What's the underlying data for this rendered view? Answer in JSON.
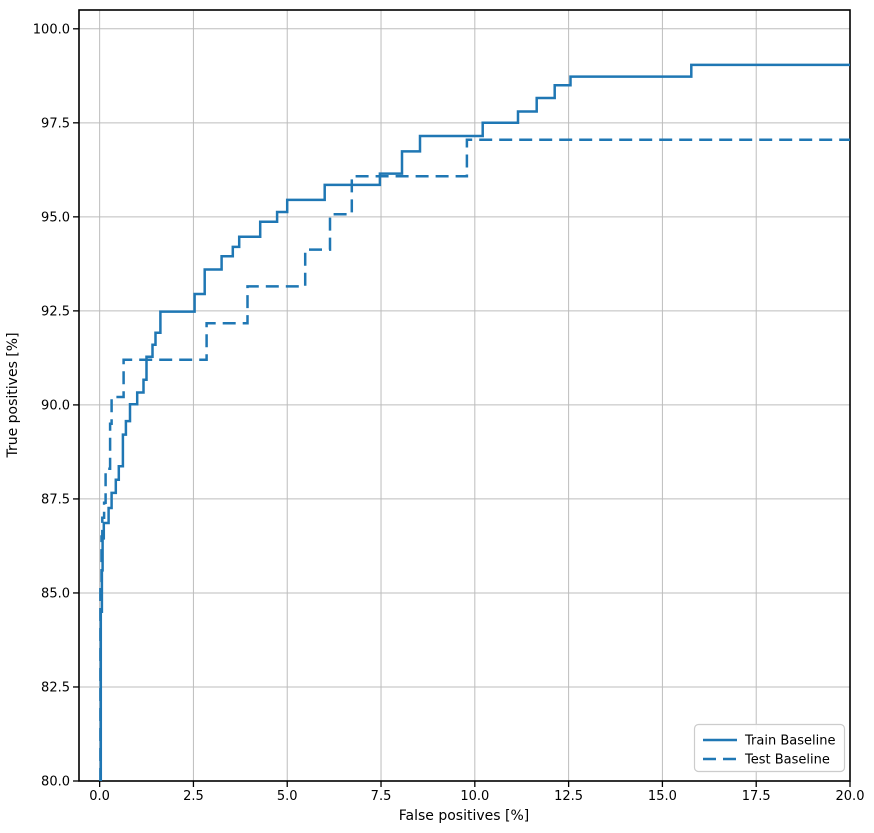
{
  "chart_data": {
    "type": "line",
    "title": "",
    "xlabel": "False positives [%]",
    "ylabel": "True positives [%]",
    "xlim": [
      -0.55,
      20.0
    ],
    "ylim": [
      80.0,
      100.5
    ],
    "xticks": [
      0.0,
      2.5,
      5.0,
      7.5,
      10.0,
      12.5,
      15.0,
      17.5,
      20.0
    ],
    "xtick_labels": [
      "0.0",
      "2.5",
      "5.0",
      "7.5",
      "10.0",
      "12.5",
      "15.0",
      "17.5",
      "20.0"
    ],
    "yticks": [
      80.0,
      82.5,
      85.0,
      87.5,
      90.0,
      92.5,
      95.0,
      97.5,
      100.0
    ],
    "ytick_labels": [
      "80.0",
      "82.5",
      "85.0",
      "87.5",
      "90.0",
      "92.5",
      "95.0",
      "97.5",
      "100.0"
    ],
    "grid": true,
    "grid_color": "#bdbdbd",
    "line_color": "#1f77b4",
    "legend_position": "lower right",
    "legend_border_color": "#cccccc",
    "series": [
      {
        "name": "Train Baseline",
        "key": "train-baseline",
        "style": "solid",
        "points": [
          [
            0.03,
            80.0
          ],
          [
            0.03,
            84.5
          ],
          [
            0.06,
            84.5
          ],
          [
            0.06,
            85.6
          ],
          [
            0.08,
            85.6
          ],
          [
            0.08,
            86.45
          ],
          [
            0.11,
            86.45
          ],
          [
            0.11,
            86.86
          ],
          [
            0.24,
            86.86
          ],
          [
            0.24,
            87.26
          ],
          [
            0.32,
            87.26
          ],
          [
            0.32,
            87.66
          ],
          [
            0.43,
            87.66
          ],
          [
            0.43,
            88.01
          ],
          [
            0.51,
            88.01
          ],
          [
            0.51,
            88.37
          ],
          [
            0.62,
            88.37
          ],
          [
            0.62,
            89.21
          ],
          [
            0.7,
            89.21
          ],
          [
            0.7,
            89.57
          ],
          [
            0.81,
            89.57
          ],
          [
            0.81,
            90.02
          ],
          [
            1.0,
            90.02
          ],
          [
            1.0,
            90.33
          ],
          [
            1.17,
            90.33
          ],
          [
            1.17,
            90.67
          ],
          [
            1.25,
            90.67
          ],
          [
            1.25,
            91.28
          ],
          [
            1.41,
            91.28
          ],
          [
            1.41,
            91.6
          ],
          [
            1.49,
            91.6
          ],
          [
            1.49,
            91.92
          ],
          [
            1.62,
            91.92
          ],
          [
            1.62,
            92.48
          ],
          [
            2.53,
            92.48
          ],
          [
            2.53,
            92.95
          ],
          [
            2.8,
            92.95
          ],
          [
            2.8,
            93.6
          ],
          [
            3.25,
            93.6
          ],
          [
            3.25,
            93.95
          ],
          [
            3.55,
            93.95
          ],
          [
            3.55,
            94.2
          ],
          [
            3.72,
            94.2
          ],
          [
            3.72,
            94.47
          ],
          [
            4.28,
            94.47
          ],
          [
            4.28,
            94.87
          ],
          [
            4.73,
            94.87
          ],
          [
            4.73,
            95.13
          ],
          [
            5.0,
            95.13
          ],
          [
            5.0,
            95.45
          ],
          [
            6.0,
            95.45
          ],
          [
            6.0,
            95.85
          ],
          [
            7.47,
            95.85
          ],
          [
            7.47,
            96.15
          ],
          [
            8.06,
            96.15
          ],
          [
            8.06,
            96.74
          ],
          [
            8.54,
            96.74
          ],
          [
            8.54,
            97.15
          ],
          [
            10.21,
            97.15
          ],
          [
            10.21,
            97.5
          ],
          [
            11.15,
            97.5
          ],
          [
            11.15,
            97.8
          ],
          [
            11.65,
            97.8
          ],
          [
            11.65,
            98.16
          ],
          [
            12.13,
            98.16
          ],
          [
            12.13,
            98.5
          ],
          [
            12.55,
            98.5
          ],
          [
            12.55,
            98.73
          ],
          [
            15.77,
            98.73
          ],
          [
            15.77,
            99.04
          ],
          [
            20.0,
            99.04
          ]
        ]
      },
      {
        "name": "Test Baseline",
        "key": "test-baseline",
        "style": "dashed",
        "points": [
          [
            0.02,
            80.0
          ],
          [
            0.02,
            85.2
          ],
          [
            0.05,
            85.2
          ],
          [
            0.05,
            86.5
          ],
          [
            0.07,
            86.5
          ],
          [
            0.07,
            87.0
          ],
          [
            0.12,
            87.0
          ],
          [
            0.12,
            87.4
          ],
          [
            0.16,
            87.4
          ],
          [
            0.16,
            88.3
          ],
          [
            0.28,
            88.3
          ],
          [
            0.28,
            89.5
          ],
          [
            0.32,
            89.5
          ],
          [
            0.32,
            90.21
          ],
          [
            0.64,
            90.21
          ],
          [
            0.64,
            91.2
          ],
          [
            2.85,
            91.2
          ],
          [
            2.85,
            92.17
          ],
          [
            3.94,
            92.17
          ],
          [
            3.94,
            93.15
          ],
          [
            5.48,
            93.15
          ],
          [
            5.48,
            94.13
          ],
          [
            6.14,
            94.13
          ],
          [
            6.14,
            95.07
          ],
          [
            6.72,
            95.07
          ],
          [
            6.72,
            96.08
          ],
          [
            9.79,
            96.08
          ],
          [
            9.79,
            97.05
          ],
          [
            20.0,
            97.05
          ]
        ]
      }
    ]
  }
}
